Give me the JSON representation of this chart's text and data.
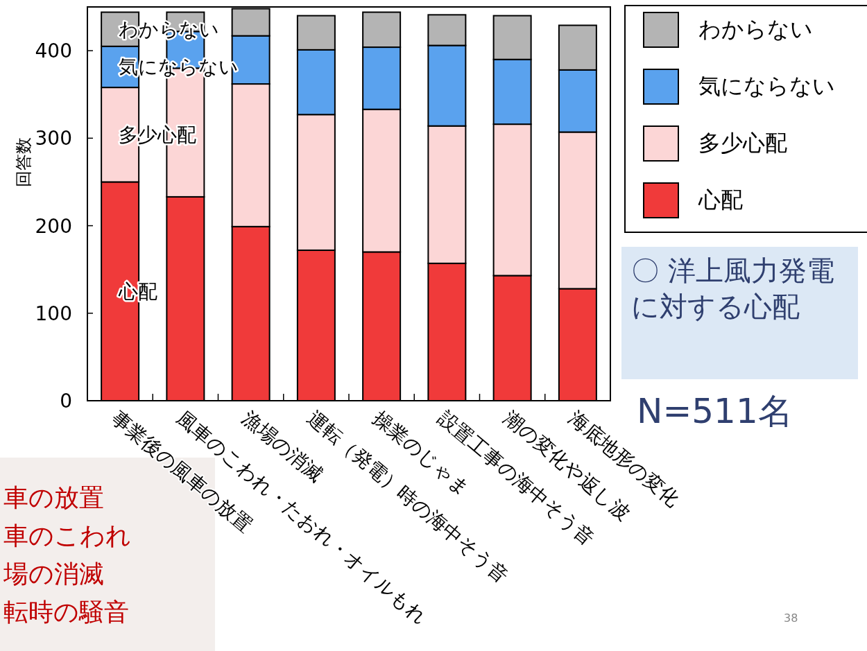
{
  "chart_data": {
    "type": "bar",
    "stacked": true,
    "title": "〇 洋上風力発電に対する心配",
    "subtitle": "N=511名",
    "ylabel": "回答数",
    "categories": [
      "事業後の風車の放置",
      "風車のこわれ・たおれ・オイルもれ",
      "漁場の消滅",
      "運転（発電）時の海中そう音",
      "操業のじゃま",
      "設置工事の海中そう音",
      "潮の変化や返し波",
      "海底地形の変化"
    ],
    "series": [
      {
        "name": "心配",
        "color": "#f03a3a",
        "values": [
          250,
          233,
          199,
          172,
          170,
          157,
          143,
          128
        ]
      },
      {
        "name": "多少心配",
        "color": "#fcd6d6",
        "values": [
          108,
          147,
          163,
          155,
          163,
          157,
          173,
          179
        ]
      },
      {
        "name": "気にならない",
        "color": "#5aa2ee",
        "values": [
          47,
          42,
          55,
          74,
          71,
          92,
          74,
          71
        ]
      },
      {
        "name": "わからない",
        "color": "#b4b4b4",
        "values": [
          39,
          22,
          31,
          39,
          40,
          35,
          50,
          51
        ]
      }
    ],
    "ylim": [
      0,
      450
    ],
    "yticks": [
      0,
      100,
      200,
      300,
      400
    ],
    "legend": "right",
    "annotations": [
      "車の放置",
      "車のこわれ",
      "場の消滅",
      "転時の騒音",
      "38"
    ]
  }
}
